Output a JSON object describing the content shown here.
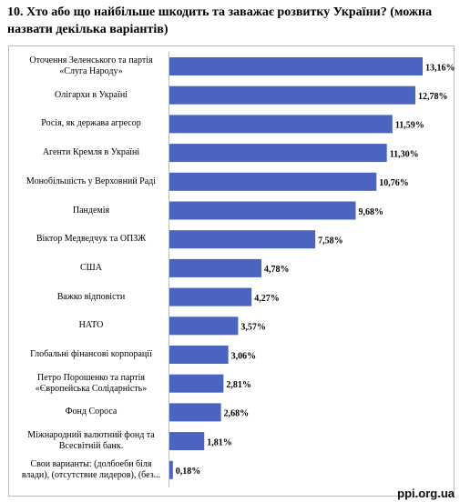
{
  "chart_data": {
    "type": "bar",
    "orientation": "horizontal",
    "title": "10. Хто або що найбільше шкодить та заважає розвитку України? (можна назвати декілька варіантів)",
    "categories": [
      "Оточення Зеленського та партія\n«Слуга Народу»",
      "Олігархи в Україні",
      "Росія, як держава агресор",
      "Агенти Кремля в Україні",
      "Монобільшість у Верховний Раді",
      "Пандемія",
      "Віктор Медведчук та ОПЗЖ",
      "США",
      "Важко відповісти",
      "НАТО",
      "Глобальні фінансові корпорації",
      "Петро Порошенко та партія\n«Європейська Солідарність»",
      "Фонд Сороса",
      "Міжнародний валютний фонд та\nВсесвітній банк.",
      "Свои варианты: (долбоеби біля\nвлади), (отсутствие лидеров), (без..."
    ],
    "values": [
      13.16,
      12.78,
      11.59,
      11.3,
      10.76,
      9.68,
      7.58,
      4.78,
      4.27,
      3.57,
      3.06,
      2.81,
      2.68,
      1.81,
      0.18
    ],
    "value_labels": [
      "13,16%",
      "12,78%",
      "11,59%",
      "11,30%",
      "10,76%",
      "9,68%",
      "7,58%",
      "4,78%",
      "4,27%",
      "3,57%",
      "3,06%",
      "2,81%",
      "2,68%",
      "1,81%",
      "0,18%"
    ],
    "color": "#4a64c0",
    "watermark": "ppi.org.ua"
  }
}
